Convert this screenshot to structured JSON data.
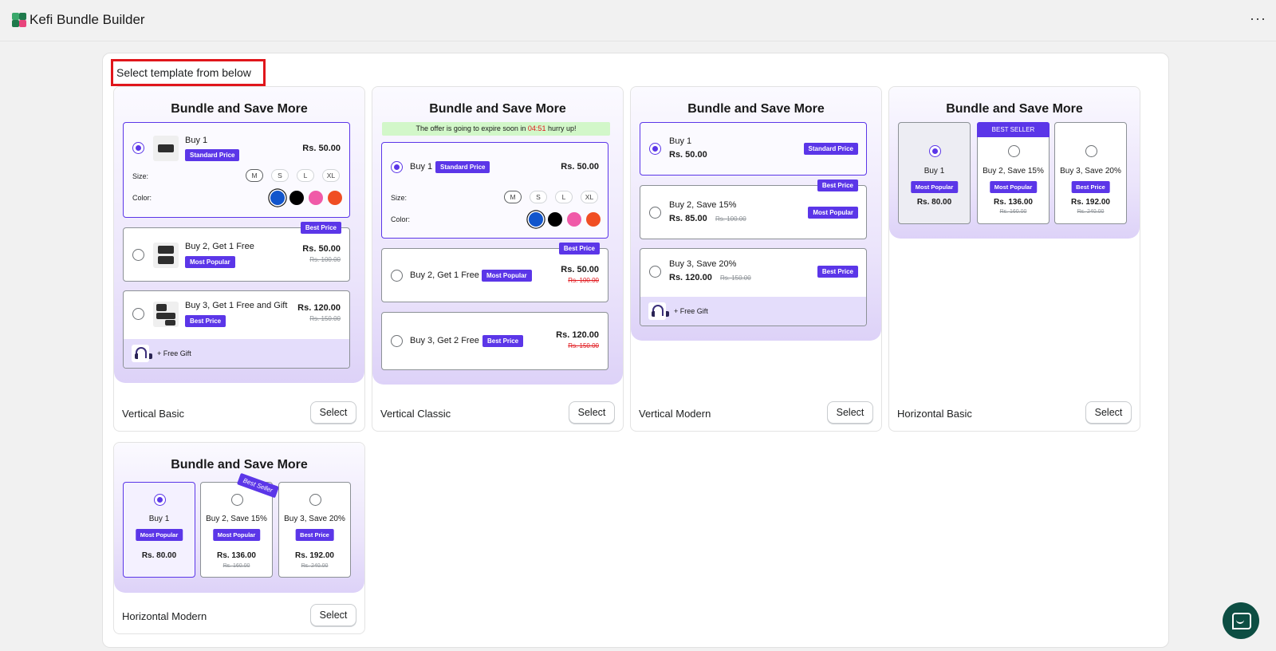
{
  "app": {
    "title": "Kefi Bundle Builder",
    "more_label": "···"
  },
  "panel": {
    "heading": "Select template from below",
    "select_label": "Select"
  },
  "colors": {
    "accent": "#5b36e8",
    "highlight": "#e0161b",
    "swatches": [
      "#1155cc",
      "#000000",
      "#f05aa8",
      "#f04e23"
    ]
  },
  "preview_title": "Bundle and Save More",
  "free_gift": "+ Free Gift",
  "labels": {
    "size": "Size:",
    "color": "Color:"
  },
  "sizes": [
    "M",
    "S",
    "L",
    "XL"
  ],
  "templates": {
    "vertical_basic": {
      "name": "Vertical Basic",
      "options": [
        {
          "title": "Buy 1",
          "badge": "Standard Price",
          "price": "Rs. 50.00"
        },
        {
          "title": "Buy 2, Get 1 Free",
          "badge": "Most Popular",
          "corner": "Best Price",
          "price": "Rs. 50.00",
          "old": "Rs. 100.00"
        },
        {
          "title": "Buy 3, Get 1 Free and Gift",
          "badge": "Best Price",
          "price": "Rs. 120.00",
          "old": "Rs. 150.00"
        }
      ]
    },
    "vertical_classic": {
      "name": "Vertical Classic",
      "timer": {
        "before": "The offer is going to expire soon in ",
        "time": "04:51",
        "after": " hurry up!"
      },
      "options": [
        {
          "title": "Buy 1",
          "badge": "Standard Price",
          "price": "Rs. 50.00"
        },
        {
          "title": "Buy 2, Get 1 Free",
          "badge": "Most Popular",
          "corner": "Best Price",
          "price": "Rs. 50.00",
          "old": "Rs. 100.00"
        },
        {
          "title": "Buy 3, Get 2 Free",
          "badge": "Best Price",
          "price": "Rs. 120.00",
          "old": "Rs. 150.00"
        }
      ]
    },
    "vertical_modern": {
      "name": "Vertical Modern",
      "options": [
        {
          "title": "Buy 1",
          "badge": "Standard Price",
          "price": "Rs. 50.00"
        },
        {
          "title": "Buy 2, Save 15%",
          "badge": "Most Popular",
          "corner": "Best Price",
          "price": "Rs. 85.00",
          "old": "Rs. 100.00"
        },
        {
          "title": "Buy 3, Save 20%",
          "badge": "Best Price",
          "price": "Rs. 120.00",
          "old": "Rs. 150.00"
        }
      ]
    },
    "horizontal_basic": {
      "name": "Horizontal Basic",
      "banner": "BEST SELLER",
      "options": [
        {
          "title": "Buy 1",
          "badge": "Most Popular",
          "price": "Rs. 80.00"
        },
        {
          "title": "Buy 2, Save 15%",
          "badge": "Most Popular",
          "price": "Rs. 136.00",
          "old": "Rs. 160.00"
        },
        {
          "title": "Buy 3, Save 20%",
          "badge": "Best Price",
          "price": "Rs. 192.00",
          "old": "Rs. 240.00"
        }
      ]
    },
    "horizontal_modern": {
      "name": "Horizontal Modern",
      "ribbon": "Best Seller",
      "options": [
        {
          "title": "Buy 1",
          "badge": "Most Popular",
          "price": "Rs. 80.00"
        },
        {
          "title": "Buy 2, Save 15%",
          "badge": "Most Popular",
          "price": "Rs. 136.00",
          "old": "Rs. 160.00"
        },
        {
          "title": "Buy 3, Save 20%",
          "badge": "Best Price",
          "price": "Rs. 192.00",
          "old": "Rs. 240.00"
        }
      ]
    }
  }
}
